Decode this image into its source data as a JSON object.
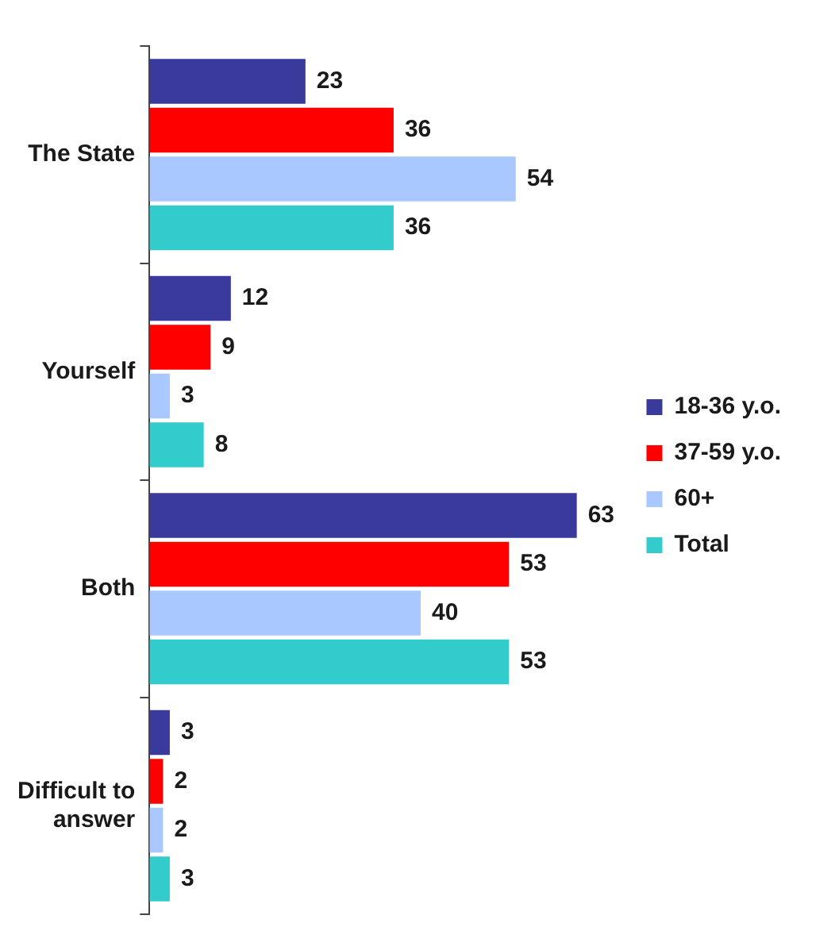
{
  "chart_data": {
    "type": "bar",
    "orientation": "horizontal",
    "categories": [
      "The State",
      "Yourself",
      "Both",
      "Difficult to answer"
    ],
    "series": [
      {
        "name": "18-36 y.o.",
        "color": "#3a3a9c",
        "values": [
          23,
          12,
          63,
          3
        ]
      },
      {
        "name": "37-59 y.o.",
        "color": "#ff0000",
        "values": [
          36,
          9,
          53,
          2
        ]
      },
      {
        "name": "60+",
        "color": "#a8c8ff",
        "values": [
          54,
          3,
          40,
          2
        ]
      },
      {
        "name": "Total",
        "color": "#33cccc",
        "values": [
          36,
          8,
          53,
          3
        ]
      }
    ],
    "data_labels": true,
    "legend": "right",
    "tick_labels": "y"
  }
}
